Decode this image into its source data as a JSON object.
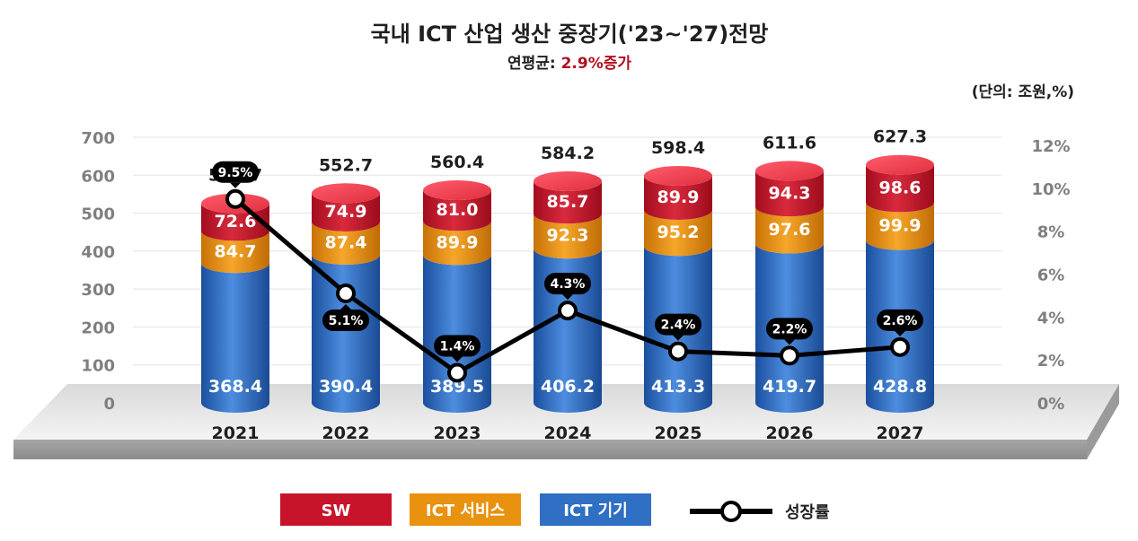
{
  "chart_data": {
    "type": "bar",
    "stacked": true,
    "title": "국내 ICT 산업 생산 중장기('23~'27)전망",
    "subtitle_prefix": "연평균: ",
    "subtitle_value": "2.9%증가",
    "unit": "(단의: 조원,%)",
    "categories": [
      "2021",
      "2022",
      "2023",
      "2024",
      "2025",
      "2026",
      "2027"
    ],
    "series": [
      {
        "name": "ICT 기기",
        "color": "#2f6fc4",
        "values": [
          368.4,
          390.4,
          389.5,
          406.2,
          413.3,
          419.7,
          428.8
        ]
      },
      {
        "name": "ICT 서비스",
        "color": "#e8920f",
        "values": [
          84.7,
          87.4,
          89.9,
          92.3,
          95.2,
          97.6,
          99.9
        ]
      },
      {
        "name": "SW",
        "color": "#c8142a",
        "values": [
          72.6,
          74.9,
          81.0,
          85.7,
          89.9,
          94.3,
          98.6
        ]
      }
    ],
    "totals": [
      "525.7",
      "552.7",
      "560.4",
      "584.2",
      "598.4",
      "611.6",
      "627.3"
    ],
    "seg_labels": [
      [
        "368.4",
        "390.4",
        "389.5",
        "406.2",
        "413.3",
        "419.7",
        "428.8"
      ],
      [
        "84.7",
        "87.4",
        "89.9",
        "92.3",
        "95.2",
        "97.6",
        "99.9"
      ],
      [
        "72.6",
        "74.9",
        "81.0",
        "85.7",
        "89.9",
        "94.3",
        "98.6"
      ]
    ],
    "line_series": {
      "name": "성장률",
      "values": [
        9.5,
        5.1,
        1.4,
        4.3,
        2.4,
        2.2,
        2.6
      ],
      "labels": [
        "9.5%",
        "5.1%",
        "1.4%",
        "4.3%",
        "2.4%",
        "2.2%",
        "2.6%"
      ],
      "label_positions": [
        "above",
        "below",
        "above",
        "above",
        "above",
        "above",
        "above"
      ]
    },
    "y_left": {
      "range": [
        0,
        700
      ],
      "ticks": [
        "0",
        "100",
        "200",
        "300",
        "400",
        "500",
        "600",
        "700"
      ]
    },
    "y_right": {
      "range": [
        0,
        12
      ],
      "ticks": [
        "0%",
        "2%",
        "4%",
        "6%",
        "8%",
        "10%",
        "12%"
      ]
    },
    "grid": true,
    "legend_placement": "bottom"
  }
}
